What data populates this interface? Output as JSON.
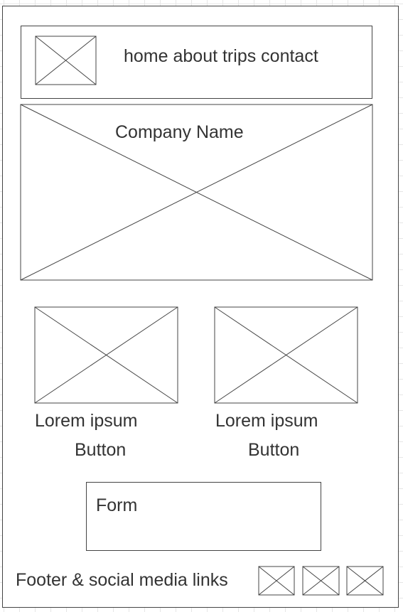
{
  "header": {
    "nav_text": "home about trips contact"
  },
  "hero": {
    "company_name": "Company Name"
  },
  "cards": [
    {
      "text": "Lorem ipsum",
      "button_label": "Button"
    },
    {
      "text": "Lorem ipsum",
      "button_label": "Button"
    }
  ],
  "form": {
    "label": "Form"
  },
  "footer": {
    "text": "Footer & social media links"
  }
}
